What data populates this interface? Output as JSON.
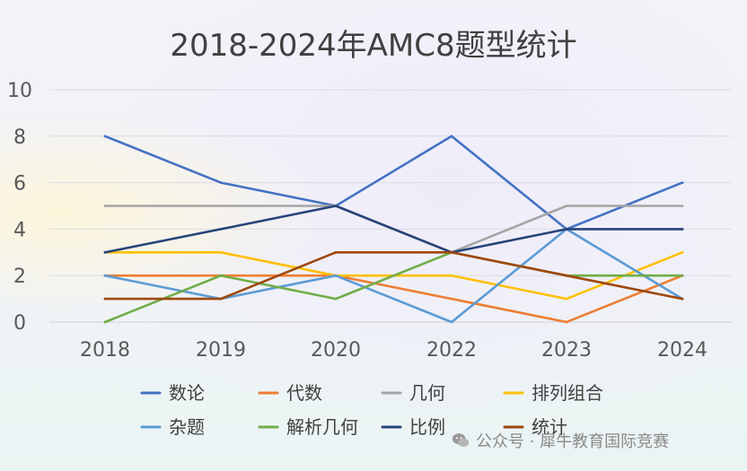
{
  "chart_data": {
    "type": "line",
    "title": "2018-2024年AMC8题型统计",
    "xlabel": "",
    "ylabel": "",
    "categories": [
      "2018",
      "2019",
      "2020",
      "2022",
      "2023",
      "2024"
    ],
    "ylim": [
      0,
      10
    ],
    "yticks": [
      0,
      2,
      4,
      6,
      8,
      10
    ],
    "grid": true,
    "legend_position": "bottom",
    "series": [
      {
        "name": "数论",
        "color": "#4472c4",
        "values": [
          8,
          6,
          5,
          8,
          4,
          6
        ]
      },
      {
        "name": "代数",
        "color": "#ed7d31",
        "values": [
          2,
          2,
          2,
          1,
          0,
          2
        ]
      },
      {
        "name": "几何",
        "color": "#a5a5a5",
        "values": [
          5,
          5,
          5,
          3,
          5,
          5
        ]
      },
      {
        "name": "排列组合",
        "color": "#ffc000",
        "values": [
          3,
          3,
          2,
          2,
          1,
          3
        ]
      },
      {
        "name": "杂题",
        "color": "#5b9bd5",
        "values": [
          2,
          1,
          2,
          0,
          4,
          1
        ]
      },
      {
        "name": "解析几何",
        "color": "#70ad47",
        "values": [
          0,
          2,
          1,
          3,
          2,
          2
        ]
      },
      {
        "name": "比例",
        "color": "#264478",
        "values": [
          3,
          4,
          5,
          3,
          4,
          4
        ]
      },
      {
        "name": "统计",
        "color": "#9e480e",
        "values": [
          1,
          1,
          3,
          3,
          2,
          1
        ]
      }
    ]
  },
  "watermark": {
    "text": "公众号 · 犀牛教育国际竞赛",
    "icon": "wechat-icon"
  }
}
